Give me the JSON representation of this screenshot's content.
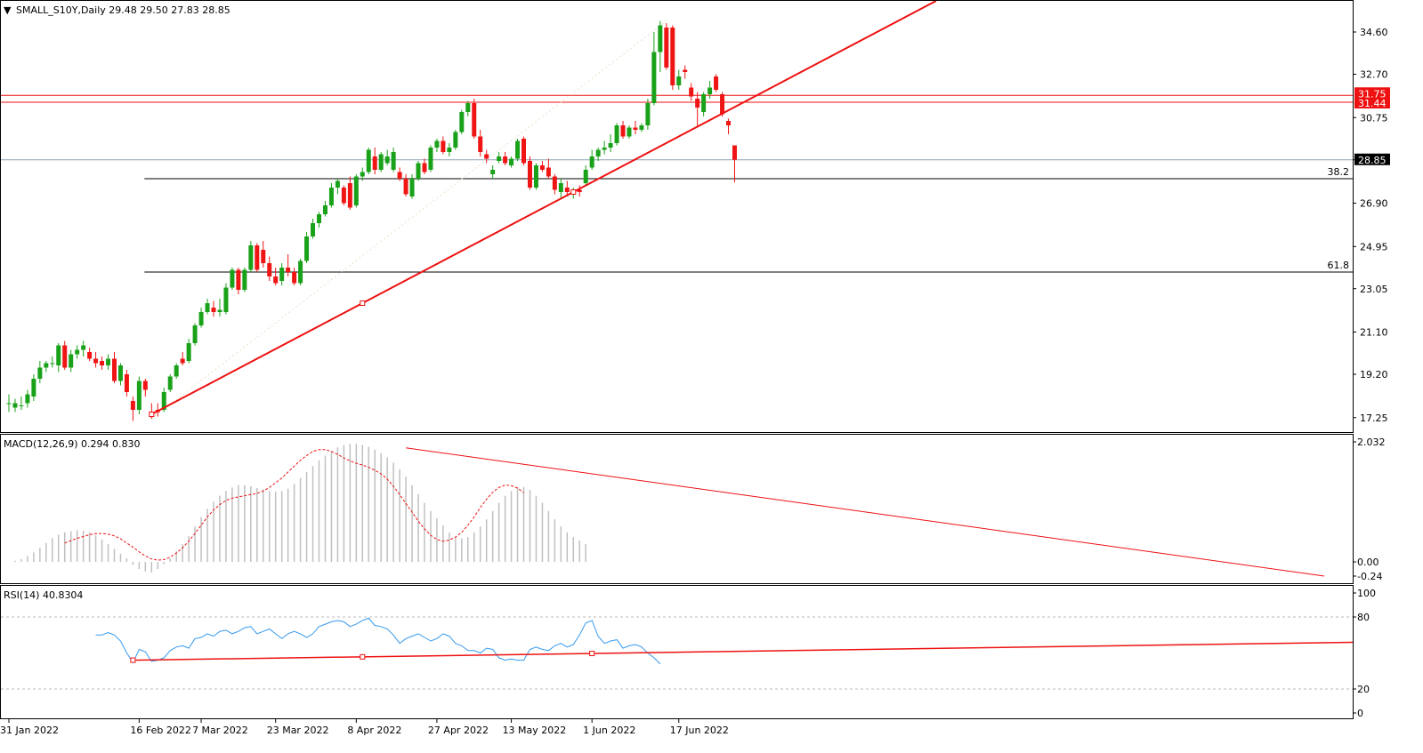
{
  "header": {
    "symbol_line": "SMALL_S10Y,Daily  29.48 29.50 27.83 28.85",
    "macd_label": "MACD(12,26,9) 0.294 0.830",
    "rsi_label": "RSI(14) 40.8304"
  },
  "price_axis": {
    "ticks": [
      "34.60",
      "32.70",
      "30.75",
      "28.85",
      "26.90",
      "24.95",
      "23.05",
      "21.10",
      "19.20",
      "17.25"
    ],
    "current_price": "28.85",
    "red_tags": [
      "31.75",
      "31.44"
    ]
  },
  "macd_axis": {
    "ticks": [
      "2.032",
      "0.00",
      "-0.24"
    ]
  },
  "rsi_axis": {
    "ticks": [
      "100",
      "80",
      "20",
      "0"
    ]
  },
  "fib_labels": [
    "38.2",
    "61.8"
  ],
  "x_axis": {
    "labels": [
      "31 Jan 2022",
      "16 Feb 2022",
      "7 Mar 2022",
      "23 Mar 2022",
      "8 Apr 2022",
      "27 Apr 2022",
      "13 May 2022",
      "1 Jun 2022",
      "17 Jun 2022"
    ]
  },
  "colors": {
    "up": "#1aa11a",
    "down": "#f01515",
    "trend": "#ee1111",
    "grid": "#bbbbbb",
    "hist": "#c0c0c0",
    "rsi": "#3399ee"
  },
  "chart_data": {
    "type": "candlestick",
    "timeframe": "Daily",
    "ylim": [
      16.6,
      36.0
    ],
    "candles": [
      {
        "o": 17.9,
        "h": 18.3,
        "l": 17.5,
        "c": 17.9
      },
      {
        "o": 17.7,
        "h": 18.1,
        "l": 17.5,
        "c": 17.9
      },
      {
        "o": 17.8,
        "h": 18.2,
        "l": 17.6,
        "c": 17.8
      },
      {
        "o": 17.9,
        "h": 18.5,
        "l": 17.7,
        "c": 18.3
      },
      {
        "o": 18.2,
        "h": 19.2,
        "l": 18.0,
        "c": 19.0
      },
      {
        "o": 19.0,
        "h": 19.8,
        "l": 18.8,
        "c": 19.5
      },
      {
        "o": 19.5,
        "h": 19.8,
        "l": 19.3,
        "c": 19.7
      },
      {
        "o": 19.7,
        "h": 20.0,
        "l": 19.5,
        "c": 19.7
      },
      {
        "o": 19.6,
        "h": 20.6,
        "l": 19.3,
        "c": 20.5
      },
      {
        "o": 20.5,
        "h": 20.7,
        "l": 19.4,
        "c": 19.5
      },
      {
        "o": 19.5,
        "h": 20.3,
        "l": 19.3,
        "c": 20.1
      },
      {
        "o": 20.1,
        "h": 20.5,
        "l": 19.9,
        "c": 20.3
      },
      {
        "o": 20.3,
        "h": 20.7,
        "l": 20.0,
        "c": 20.5
      },
      {
        "o": 20.2,
        "h": 20.4,
        "l": 19.8,
        "c": 19.9
      },
      {
        "o": 19.9,
        "h": 20.2,
        "l": 19.5,
        "c": 19.7
      },
      {
        "o": 19.8,
        "h": 20.0,
        "l": 19.4,
        "c": 19.6
      },
      {
        "o": 19.6,
        "h": 20.1,
        "l": 19.4,
        "c": 19.9
      },
      {
        "o": 19.9,
        "h": 20.2,
        "l": 18.8,
        "c": 18.9
      },
      {
        "o": 18.9,
        "h": 19.7,
        "l": 18.7,
        "c": 19.6
      },
      {
        "o": 19.2,
        "h": 19.4,
        "l": 18.2,
        "c": 18.4
      },
      {
        "o": 18.0,
        "h": 18.2,
        "l": 17.1,
        "c": 17.6
      },
      {
        "o": 17.6,
        "h": 19.1,
        "l": 17.4,
        "c": 18.9
      },
      {
        "o": 18.9,
        "h": 19.0,
        "l": 18.2,
        "c": 18.5
      },
      {
        "o": 17.5,
        "h": 17.9,
        "l": 17.2,
        "c": 17.4
      },
      {
        "o": 17.6,
        "h": 17.9,
        "l": 17.3,
        "c": 17.5
      },
      {
        "o": 17.6,
        "h": 18.6,
        "l": 17.5,
        "c": 18.4
      },
      {
        "o": 18.5,
        "h": 19.2,
        "l": 18.4,
        "c": 19.1
      },
      {
        "o": 19.1,
        "h": 19.7,
        "l": 19.0,
        "c": 19.6
      },
      {
        "o": 19.9,
        "h": 20.2,
        "l": 19.6,
        "c": 19.7
      },
      {
        "o": 19.8,
        "h": 20.8,
        "l": 19.7,
        "c": 20.6
      },
      {
        "o": 20.6,
        "h": 21.5,
        "l": 20.5,
        "c": 21.4
      },
      {
        "o": 21.4,
        "h": 22.2,
        "l": 21.3,
        "c": 22.0
      },
      {
        "o": 22.0,
        "h": 22.6,
        "l": 21.9,
        "c": 22.4
      },
      {
        "o": 22.2,
        "h": 22.5,
        "l": 21.8,
        "c": 22.0
      },
      {
        "o": 22.0,
        "h": 22.6,
        "l": 21.8,
        "c": 22.1
      },
      {
        "o": 22.0,
        "h": 23.3,
        "l": 21.9,
        "c": 23.1
      },
      {
        "o": 23.1,
        "h": 24.0,
        "l": 23.0,
        "c": 23.9
      },
      {
        "o": 23.9,
        "h": 24.0,
        "l": 22.8,
        "c": 23.0
      },
      {
        "o": 23.0,
        "h": 24.0,
        "l": 22.9,
        "c": 23.9
      },
      {
        "o": 23.9,
        "h": 25.2,
        "l": 23.8,
        "c": 25.0
      },
      {
        "o": 25.0,
        "h": 25.1,
        "l": 23.8,
        "c": 23.9
      },
      {
        "o": 24.8,
        "h": 25.2,
        "l": 24.0,
        "c": 24.2
      },
      {
        "o": 24.2,
        "h": 24.5,
        "l": 23.4,
        "c": 23.6
      },
      {
        "o": 23.6,
        "h": 24.0,
        "l": 23.2,
        "c": 23.3
      },
      {
        "o": 23.4,
        "h": 24.2,
        "l": 23.2,
        "c": 24.0
      },
      {
        "o": 24.0,
        "h": 24.6,
        "l": 23.6,
        "c": 23.8
      },
      {
        "o": 23.8,
        "h": 24.0,
        "l": 23.2,
        "c": 23.3
      },
      {
        "o": 23.3,
        "h": 24.4,
        "l": 23.2,
        "c": 24.3
      },
      {
        "o": 24.3,
        "h": 25.6,
        "l": 24.2,
        "c": 25.4
      },
      {
        "o": 25.4,
        "h": 26.2,
        "l": 25.3,
        "c": 26.0
      },
      {
        "o": 26.0,
        "h": 26.5,
        "l": 25.8,
        "c": 26.4
      },
      {
        "o": 26.4,
        "h": 27.0,
        "l": 26.3,
        "c": 26.8
      },
      {
        "o": 26.8,
        "h": 27.8,
        "l": 26.7,
        "c": 27.6
      },
      {
        "o": 27.6,
        "h": 28.0,
        "l": 27.3,
        "c": 27.9
      },
      {
        "o": 27.6,
        "h": 27.7,
        "l": 26.8,
        "c": 26.9
      },
      {
        "o": 27.8,
        "h": 28.1,
        "l": 26.6,
        "c": 26.7
      },
      {
        "o": 26.8,
        "h": 28.2,
        "l": 26.7,
        "c": 28.1
      },
      {
        "o": 28.1,
        "h": 28.5,
        "l": 27.9,
        "c": 28.3
      },
      {
        "o": 28.3,
        "h": 29.4,
        "l": 28.2,
        "c": 29.3
      },
      {
        "o": 29.0,
        "h": 29.4,
        "l": 28.2,
        "c": 28.4
      },
      {
        "o": 28.4,
        "h": 29.2,
        "l": 28.3,
        "c": 29.1
      },
      {
        "o": 28.7,
        "h": 29.3,
        "l": 28.6,
        "c": 29.0
      },
      {
        "o": 28.4,
        "h": 29.4,
        "l": 28.3,
        "c": 29.2
      },
      {
        "o": 28.3,
        "h": 28.5,
        "l": 27.9,
        "c": 28.0
      },
      {
        "o": 28.0,
        "h": 28.2,
        "l": 27.2,
        "c": 27.3
      },
      {
        "o": 27.2,
        "h": 28.2,
        "l": 27.1,
        "c": 28.0
      },
      {
        "o": 28.0,
        "h": 28.8,
        "l": 27.9,
        "c": 28.7
      },
      {
        "o": 28.7,
        "h": 28.9,
        "l": 28.2,
        "c": 28.3
      },
      {
        "o": 28.4,
        "h": 29.5,
        "l": 28.3,
        "c": 29.4
      },
      {
        "o": 29.4,
        "h": 29.8,
        "l": 29.2,
        "c": 29.7
      },
      {
        "o": 29.7,
        "h": 29.9,
        "l": 29.1,
        "c": 29.2
      },
      {
        "o": 29.2,
        "h": 29.6,
        "l": 29.0,
        "c": 29.4
      },
      {
        "o": 29.4,
        "h": 30.2,
        "l": 29.3,
        "c": 30.1
      },
      {
        "o": 30.1,
        "h": 31.1,
        "l": 30.0,
        "c": 31.0
      },
      {
        "o": 31.0,
        "h": 31.5,
        "l": 30.8,
        "c": 31.4
      },
      {
        "o": 31.4,
        "h": 31.6,
        "l": 29.8,
        "c": 29.9
      },
      {
        "o": 29.9,
        "h": 30.2,
        "l": 29.0,
        "c": 29.2
      },
      {
        "o": 29.1,
        "h": 29.3,
        "l": 28.7,
        "c": 28.9
      },
      {
        "o": 28.2,
        "h": 28.6,
        "l": 28.0,
        "c": 28.4
      },
      {
        "o": 28.8,
        "h": 29.2,
        "l": 28.7,
        "c": 29.0
      },
      {
        "o": 29.0,
        "h": 29.2,
        "l": 28.6,
        "c": 28.7
      },
      {
        "o": 28.6,
        "h": 29.0,
        "l": 28.5,
        "c": 28.9
      },
      {
        "o": 28.9,
        "h": 29.8,
        "l": 28.8,
        "c": 29.7
      },
      {
        "o": 29.8,
        "h": 29.9,
        "l": 28.6,
        "c": 28.7
      },
      {
        "o": 28.8,
        "h": 29.0,
        "l": 27.5,
        "c": 27.6
      },
      {
        "o": 27.6,
        "h": 28.7,
        "l": 27.5,
        "c": 28.6
      },
      {
        "o": 28.6,
        "h": 28.8,
        "l": 28.3,
        "c": 28.4
      },
      {
        "o": 28.5,
        "h": 28.9,
        "l": 28.0,
        "c": 28.1
      },
      {
        "o": 28.1,
        "h": 28.2,
        "l": 27.3,
        "c": 27.5
      },
      {
        "o": 27.4,
        "h": 28.0,
        "l": 27.1,
        "c": 27.8
      },
      {
        "o": 27.6,
        "h": 27.9,
        "l": 27.2,
        "c": 27.4
      },
      {
        "o": 27.3,
        "h": 27.6,
        "l": 27.1,
        "c": 27.5
      },
      {
        "o": 27.5,
        "h": 27.7,
        "l": 27.2,
        "c": 27.4
      },
      {
        "o": 27.8,
        "h": 28.6,
        "l": 27.7,
        "c": 28.4
      },
      {
        "o": 28.5,
        "h": 29.3,
        "l": 28.4,
        "c": 29.0
      },
      {
        "o": 29.0,
        "h": 29.4,
        "l": 28.8,
        "c": 29.3
      },
      {
        "o": 29.3,
        "h": 29.7,
        "l": 29.1,
        "c": 29.4
      },
      {
        "o": 29.4,
        "h": 30.0,
        "l": 29.2,
        "c": 29.6
      },
      {
        "o": 29.6,
        "h": 30.5,
        "l": 29.5,
        "c": 30.4
      },
      {
        "o": 30.4,
        "h": 30.6,
        "l": 29.8,
        "c": 29.9
      },
      {
        "o": 29.9,
        "h": 30.4,
        "l": 29.8,
        "c": 30.3
      },
      {
        "o": 30.3,
        "h": 30.6,
        "l": 30.0,
        "c": 30.2
      },
      {
        "o": 30.2,
        "h": 30.5,
        "l": 30.1,
        "c": 30.4
      },
      {
        "o": 30.4,
        "h": 31.6,
        "l": 30.2,
        "c": 31.4
      },
      {
        "o": 31.4,
        "h": 34.6,
        "l": 31.3,
        "c": 33.7
      },
      {
        "o": 33.7,
        "h": 35.1,
        "l": 32.8,
        "c": 34.9
      },
      {
        "o": 34.8,
        "h": 35.0,
        "l": 32.9,
        "c": 33.0
      },
      {
        "o": 34.8,
        "h": 34.9,
        "l": 32.0,
        "c": 32.2
      },
      {
        "o": 32.2,
        "h": 32.9,
        "l": 32.0,
        "c": 32.6
      },
      {
        "o": 32.9,
        "h": 33.1,
        "l": 32.5,
        "c": 32.8
      },
      {
        "o": 32.1,
        "h": 32.3,
        "l": 31.5,
        "c": 31.7
      },
      {
        "o": 31.6,
        "h": 31.9,
        "l": 30.3,
        "c": 31.2
      },
      {
        "o": 31.0,
        "h": 31.9,
        "l": 30.8,
        "c": 31.8
      },
      {
        "o": 31.8,
        "h": 32.4,
        "l": 31.6,
        "c": 32.1
      },
      {
        "o": 32.6,
        "h": 32.7,
        "l": 31.9,
        "c": 32.0
      },
      {
        "o": 31.8,
        "h": 31.9,
        "l": 30.8,
        "c": 30.9
      },
      {
        "o": 30.6,
        "h": 30.7,
        "l": 30.0,
        "c": 30.4
      },
      {
        "o": 29.5,
        "h": 29.5,
        "l": 27.83,
        "c": 28.85
      }
    ],
    "trendline_price": {
      "from": {
        "bar": 23,
        "price": 17.4
      },
      "through": {
        "bar": 91,
        "price": 27.4
      }
    },
    "horizontal_lines": [
      31.75,
      31.44,
      28.85
    ],
    "fib_levels": [
      {
        "label": "38.2",
        "price": 28.0
      },
      {
        "label": "61.8",
        "price": 23.8
      }
    ],
    "macd": {
      "params": "12,26,9",
      "macd_value": 0.294,
      "signal_value": 0.83,
      "ylim": [
        -0.24,
        2.032
      ],
      "histogram": [
        0.0,
        0.02,
        0.05,
        0.1,
        0.16,
        0.24,
        0.32,
        0.4,
        0.46,
        0.5,
        0.52,
        0.54,
        0.53,
        0.5,
        0.45,
        0.38,
        0.3,
        0.22,
        0.14,
        0.06,
        -0.05,
        -0.12,
        -0.16,
        -0.18,
        -0.12,
        -0.04,
        0.06,
        0.18,
        0.3,
        0.44,
        0.6,
        0.76,
        0.9,
        1.02,
        1.12,
        1.2,
        1.26,
        1.3,
        1.3,
        1.28,
        1.25,
        1.23,
        1.2,
        1.19,
        1.2,
        1.24,
        1.32,
        1.42,
        1.52,
        1.62,
        1.72,
        1.8,
        1.88,
        1.94,
        1.98,
        2.0,
        2.0,
        1.98,
        1.95,
        1.9,
        1.84,
        1.77,
        1.68,
        1.57,
        1.44,
        1.3,
        1.15,
        1.0,
        0.86,
        0.74,
        0.62,
        0.5,
        0.42,
        0.4,
        0.42,
        0.5,
        0.6,
        0.72,
        0.86,
        1.0,
        1.12,
        1.2,
        1.26,
        1.27,
        1.22,
        1.12,
        1.0,
        0.86,
        0.72,
        0.6,
        0.5,
        0.42,
        0.36,
        0.3
      ],
      "signal": [
        0.32,
        0.36,
        0.4,
        0.43,
        0.46,
        0.48,
        0.48,
        0.47,
        0.44,
        0.39,
        0.32,
        0.25,
        0.17,
        0.1,
        0.05,
        0.03,
        0.04,
        0.08,
        0.15,
        0.24,
        0.35,
        0.48,
        0.62,
        0.76,
        0.88,
        0.97,
        1.04,
        1.08,
        1.1,
        1.12,
        1.14,
        1.16,
        1.2,
        1.26,
        1.34,
        1.42,
        1.52,
        1.62,
        1.72,
        1.8,
        1.87,
        1.9,
        1.9,
        1.87,
        1.82,
        1.76,
        1.71,
        1.67,
        1.64,
        1.6,
        1.55,
        1.49,
        1.4,
        1.28,
        1.14,
        0.99,
        0.84,
        0.69,
        0.56,
        0.45,
        0.38,
        0.35,
        0.37,
        0.42,
        0.5,
        0.62,
        0.76,
        0.92,
        1.06,
        1.18,
        1.26,
        1.3,
        1.29,
        1.25,
        1.17
      ],
      "signal_start_bar": 9,
      "trendline": {
        "from": {
          "bar": 64,
          "value": 1.93
        },
        "to_value_at_right": -0.24
      }
    },
    "rsi": {
      "period": 14,
      "value": 40.8304,
      "ylim": [
        0,
        100
      ],
      "levels": [
        80,
        20
      ],
      "start_bar": 14,
      "values": [
        65.0,
        65.0,
        67.0,
        65.0,
        60.0,
        50.0,
        42.0,
        53.0,
        51.0,
        43.0,
        44.0,
        46.0,
        52.0,
        55.0,
        56.0,
        54.0,
        62.0,
        63.0,
        66.0,
        64.0,
        68.0,
        69.0,
        66.0,
        68.0,
        71.0,
        72.0,
        66.0,
        68.0,
        70.0,
        66.0,
        62.0,
        66.0,
        68.0,
        66.0,
        63.0,
        66.0,
        72.0,
        74.0,
        76.0,
        77.0,
        76.0,
        72.0,
        74.0,
        77.0,
        79.0,
        73.0,
        72.0,
        70.0,
        65.0,
        58.0,
        62.0,
        64.0,
        66.0,
        63.0,
        60.0,
        62.0,
        66.0,
        64.0,
        58.0,
        56.0,
        52.0,
        52.0,
        50.0,
        54.0,
        53.0,
        46.0,
        44.0,
        45.0,
        44.0,
        44.0,
        53.0,
        55.0,
        53.0,
        52.0,
        56.0,
        58.0,
        55.0,
        57.0,
        65.0,
        75.0,
        77.0,
        64.0,
        58.0,
        60.0,
        61.0,
        54.0,
        56.0,
        57.0,
        55.0,
        50.0,
        46.0,
        40.83
      ],
      "trendline": {
        "from": {
          "bar": 20,
          "value": 44.0
        },
        "through": {
          "bar": 86,
          "value": 49.0
        }
      }
    }
  }
}
